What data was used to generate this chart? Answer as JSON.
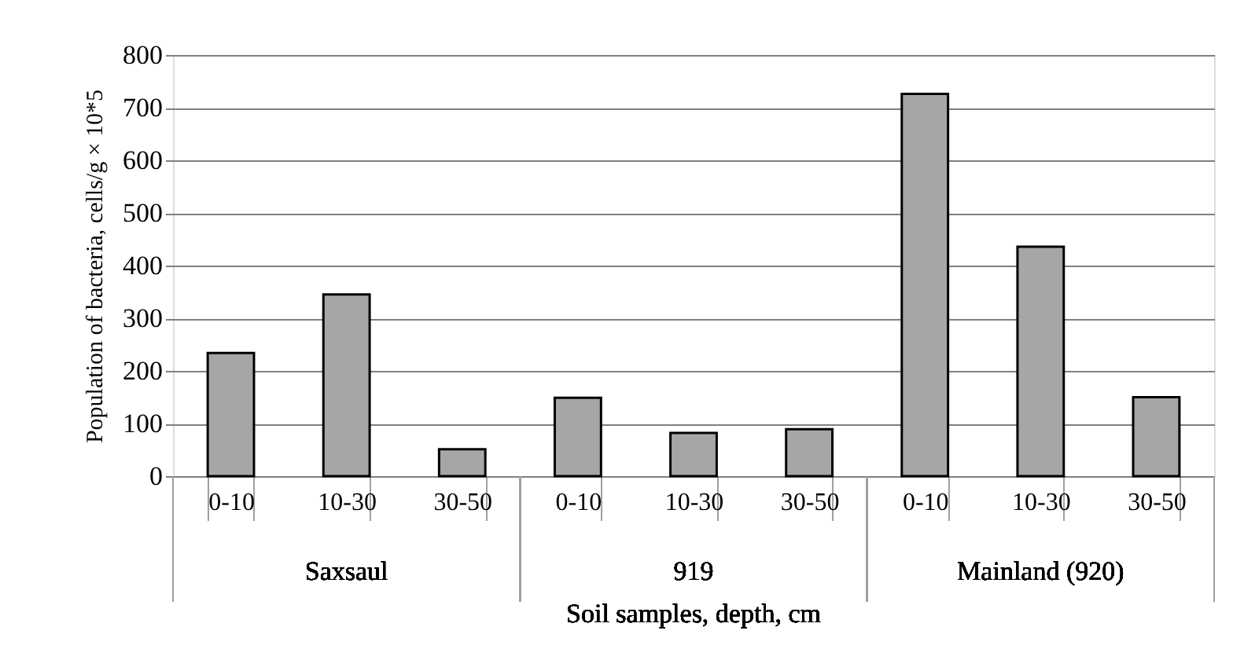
{
  "chart_data": {
    "type": "bar",
    "xlabel": "Soil samples, depth, cm",
    "ylabel": "Population of bacteria, cells/g × 10*5",
    "categories": [
      "0-10",
      "10-30",
      "30-50",
      "0-10",
      "10-30",
      "30-50",
      "0-10",
      "10-30",
      "30-50"
    ],
    "values": [
      234,
      345,
      51,
      149,
      82,
      89,
      726,
      436,
      150
    ],
    "color": "#a6a6a6",
    "annotations": [
      "Saxsaul",
      "919",
      "Mainland (920)"
    ],
    "ylim": [
      0,
      800
    ],
    "yticks": [
      0,
      100,
      200,
      300,
      400,
      500,
      600,
      700,
      800
    ],
    "grid": "y"
  }
}
